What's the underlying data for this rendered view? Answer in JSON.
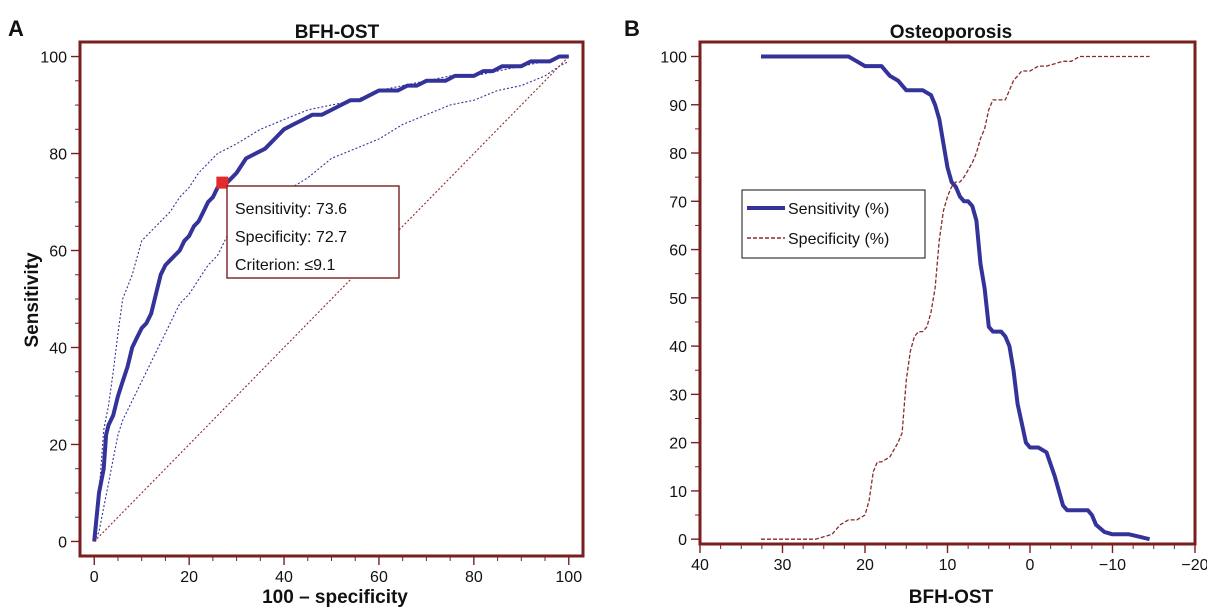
{
  "chart_data": [
    {
      "panel": "A",
      "type": "line",
      "title": "BFH-OST",
      "xlabel": "100 – specificity",
      "ylabel": "Sensitivity",
      "xlim": [
        -3,
        103
      ],
      "ylim": [
        -3,
        103
      ],
      "xticks": [
        0,
        20,
        40,
        60,
        80,
        100
      ],
      "yticks": [
        0,
        20,
        40,
        60,
        80,
        100
      ],
      "series": [
        {
          "role": "roc",
          "color": "#33339a",
          "style": "solid-thick",
          "x": [
            0,
            0.5,
            1,
            2,
            2.5,
            3,
            4,
            5,
            6,
            7,
            8,
            9,
            10,
            11,
            12,
            13,
            14,
            15,
            16,
            17,
            18,
            19,
            20,
            21,
            22,
            23,
            24,
            25,
            26,
            27,
            28,
            29,
            30,
            32,
            34,
            36,
            38,
            40,
            42,
            44,
            46,
            48,
            50,
            52,
            54,
            56,
            58,
            60,
            62,
            64,
            66,
            68,
            70,
            72,
            74,
            76,
            78,
            80,
            82,
            84,
            86,
            88,
            90,
            92,
            94,
            96,
            98,
            99,
            100
          ],
          "y": [
            0,
            5,
            10,
            15,
            22,
            24,
            26,
            30,
            33,
            36,
            40,
            42,
            44,
            45,
            47,
            51,
            55,
            57,
            58,
            59,
            60,
            62,
            63,
            65,
            66,
            68,
            70,
            71,
            73,
            74,
            74,
            75,
            76,
            79,
            80,
            81,
            83,
            85,
            86,
            87,
            88,
            88,
            89,
            90,
            91,
            91,
            92,
            93,
            93,
            93,
            94,
            94,
            95,
            95,
            95,
            96,
            96,
            96,
            97,
            97,
            98,
            98,
            98,
            99,
            99,
            99,
            100,
            100,
            100
          ]
        },
        {
          "role": "ci-upper",
          "color": "#33339a",
          "style": "dotted",
          "x": [
            0,
            1,
            2,
            3,
            4,
            5,
            6,
            8,
            10,
            12,
            14,
            16,
            18,
            20,
            22,
            24,
            26,
            28,
            30,
            35,
            40,
            45,
            50,
            55,
            60,
            65,
            70,
            75,
            80,
            85,
            90,
            95,
            98,
            100
          ],
          "y": [
            0,
            10,
            23,
            28,
            35,
            43,
            50,
            55,
            62,
            64,
            66,
            68,
            71,
            73,
            76,
            78,
            80,
            81,
            82,
            85,
            87,
            89,
            90,
            91,
            93,
            94,
            95,
            96,
            96,
            97,
            98,
            99,
            100,
            100
          ]
        },
        {
          "role": "ci-lower",
          "color": "#33339a",
          "style": "dotted",
          "x": [
            0,
            1,
            2,
            3,
            4,
            5,
            6,
            8,
            10,
            12,
            14,
            16,
            18,
            20,
            22,
            24,
            26,
            28,
            30,
            35,
            40,
            45,
            50,
            55,
            60,
            65,
            70,
            75,
            80,
            85,
            90,
            95,
            98,
            100
          ],
          "y": [
            0,
            2,
            7,
            12,
            17,
            22,
            25,
            29,
            33,
            37,
            41,
            45,
            49,
            51,
            54,
            57,
            59,
            63,
            66,
            68,
            72,
            75,
            79,
            81,
            83,
            86,
            88,
            90,
            91,
            93,
            94,
            96,
            98,
            99
          ]
        },
        {
          "role": "reference-diagonal",
          "color": "#8a2a2a",
          "style": "dotted",
          "x": [
            0,
            100
          ],
          "y": [
            0,
            100
          ]
        }
      ],
      "marker": {
        "x": 27,
        "y": 74,
        "color": "#e32b2b"
      },
      "annotation": {
        "lines": [
          "Sensitivity: 73.6",
          "Specificity: 72.7",
          "Criterion: ≤9.1"
        ]
      }
    },
    {
      "panel": "B",
      "type": "line",
      "title": "Osteoporosis",
      "xlabel": "BFH-OST",
      "ylabel": "",
      "xlim": [
        40,
        -20
      ],
      "ylim": [
        -1,
        103
      ],
      "xticks": [
        40,
        30,
        20,
        10,
        0,
        -10,
        -20
      ],
      "xtick_labels": [
        "40",
        "30",
        "20",
        "10",
        "0",
        "−10",
        "−20"
      ],
      "yticks": [
        0,
        10,
        20,
        30,
        40,
        50,
        60,
        70,
        80,
        90,
        100
      ],
      "series": [
        {
          "name": "Sensitivity (%)",
          "color": "#33339a",
          "style": "solid-thick",
          "x": [
            32.6,
            28,
            24,
            22,
            21,
            20,
            19,
            18,
            17,
            16,
            15,
            14,
            13,
            12,
            11.5,
            11,
            10.5,
            10,
            9.5,
            9,
            8.5,
            8,
            7.5,
            7,
            6.5,
            6,
            5.5,
            5,
            4.5,
            4,
            3.5,
            3,
            2.5,
            2,
            1.5,
            1,
            0.5,
            0,
            -0.5,
            -1,
            -2,
            -3,
            -3.5,
            -4,
            -4.5,
            -5,
            -6,
            -7,
            -7.5,
            -8,
            -9,
            -10,
            -11,
            -12,
            -14.5
          ],
          "y": [
            100,
            100,
            100,
            100,
            99,
            98,
            98,
            98,
            96,
            95,
            93,
            93,
            93,
            92,
            90,
            87,
            82,
            77,
            74,
            73,
            71,
            70,
            70,
            69,
            66,
            57,
            52,
            44,
            43,
            43,
            43,
            42,
            40,
            35,
            28,
            24,
            20,
            19,
            19,
            19,
            18,
            13,
            10,
            7,
            6,
            6,
            6,
            6,
            5,
            3,
            1.5,
            1,
            1,
            1,
            0
          ]
        },
        {
          "name": "Specificity (%)",
          "color": "#8a2a2a",
          "style": "dashed",
          "x": [
            32.6,
            28,
            26,
            25,
            24,
            23,
            22,
            21,
            20,
            19.5,
            19,
            18.5,
            18,
            17,
            16,
            15.5,
            15,
            14.5,
            14,
            13.5,
            13,
            12.5,
            12,
            11.5,
            11,
            10.5,
            10,
            9.5,
            9,
            8.5,
            8,
            7,
            6.5,
            6,
            5.5,
            5,
            4.5,
            4,
            3.5,
            3,
            2.5,
            2,
            1,
            0.5,
            0,
            -1,
            -2,
            -4,
            -5,
            -6,
            -8,
            -10,
            -12,
            -14.5
          ],
          "y": [
            0,
            0,
            0,
            0.5,
            1,
            3,
            4,
            4,
            5,
            8,
            14,
            16,
            16,
            17,
            20,
            22,
            33,
            39,
            42,
            43,
            43,
            44,
            47,
            52,
            62,
            68,
            71,
            73,
            74,
            74,
            75,
            78,
            80,
            83,
            85,
            89,
            91,
            91,
            91,
            91,
            93,
            95,
            97,
            97,
            97,
            98,
            98,
            99,
            99,
            100,
            100,
            100,
            100,
            100
          ]
        }
      ],
      "legend": {
        "placement": "left-middle",
        "entries": [
          "Sensitivity (%)",
          "Specificity (%)"
        ]
      }
    }
  ],
  "panel_letters": {
    "a": "A",
    "b": "B"
  }
}
